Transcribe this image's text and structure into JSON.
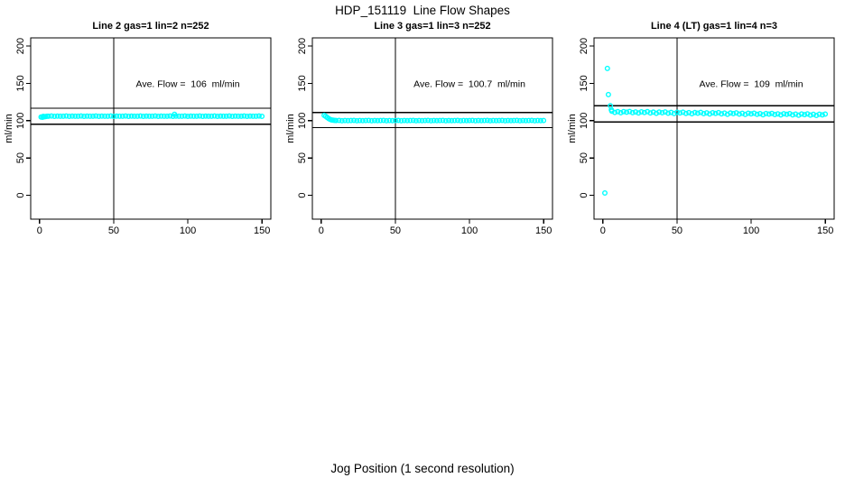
{
  "title": "HDP_151119  Line Flow Shapes",
  "xlabel": "Jog Position (1 second resolution)",
  "colors": {
    "point": "#00FFFF",
    "axis": "#000000",
    "background": "#FFFFFF"
  },
  "chart_data": [
    {
      "type": "scatter",
      "title": "Line 2 gas=1 lin=2 n=252",
      "ylabel": "ml/min",
      "annotation": "Ave. Flow =  106  ml/min",
      "ave_flow": 106,
      "n": 252,
      "marker": "open-circle",
      "xlim": [
        -6,
        156
      ],
      "ylim": [
        -32,
        211
      ],
      "x_ticks": [
        0,
        50,
        100,
        150
      ],
      "y_ticks": [
        0,
        50,
        100,
        150,
        200
      ],
      "ref_lines_y": [
        116.6,
        95.4
      ],
      "ref_lines_x": [
        50
      ],
      "annotation_pos": [
        100,
        150
      ],
      "points": [
        [
          1,
          104.8
        ],
        [
          2,
          104.6
        ],
        [
          2.5,
          105.8
        ],
        [
          3,
          105.2
        ],
        [
          4,
          105.6
        ],
        [
          5,
          105.9
        ],
        [
          6,
          106
        ],
        [
          8,
          106.3
        ],
        [
          10,
          105.8
        ],
        [
          12,
          106.1
        ],
        [
          14,
          105.9
        ],
        [
          16,
          106
        ],
        [
          18,
          106.3
        ],
        [
          20,
          105.8
        ],
        [
          22,
          106.1
        ],
        [
          24,
          105.9
        ],
        [
          26,
          106
        ],
        [
          28,
          106.3
        ],
        [
          30,
          105.8
        ],
        [
          32,
          106.1
        ],
        [
          34,
          105.9
        ],
        [
          36,
          106
        ],
        [
          38,
          106.3
        ],
        [
          40,
          105.8
        ],
        [
          42,
          106.1
        ],
        [
          44,
          105.9
        ],
        [
          46,
          106
        ],
        [
          48,
          106.3
        ],
        [
          50,
          105.8
        ],
        [
          52,
          106.1
        ],
        [
          54,
          105.9
        ],
        [
          56,
          106
        ],
        [
          58,
          106.3
        ],
        [
          60,
          105.8
        ],
        [
          62,
          106.1
        ],
        [
          64,
          105.9
        ],
        [
          66,
          106
        ],
        [
          68,
          106.3
        ],
        [
          70,
          105.8
        ],
        [
          72,
          106.1
        ],
        [
          74,
          105.9
        ],
        [
          76,
          106
        ],
        [
          78,
          106.3
        ],
        [
          80,
          105.8
        ],
        [
          82,
          106.1
        ],
        [
          84,
          105.9
        ],
        [
          86,
          106
        ],
        [
          88,
          106.3
        ],
        [
          90,
          105.8
        ],
        [
          91,
          108.6
        ],
        [
          92,
          106.1
        ],
        [
          94,
          105.9
        ],
        [
          96,
          106
        ],
        [
          98,
          106.3
        ],
        [
          100,
          105.8
        ],
        [
          102,
          106.1
        ],
        [
          104,
          105.9
        ],
        [
          106,
          106
        ],
        [
          108,
          106.3
        ],
        [
          110,
          105.8
        ],
        [
          112,
          106.1
        ],
        [
          114,
          105.9
        ],
        [
          116,
          106
        ],
        [
          118,
          106.3
        ],
        [
          120,
          105.8
        ],
        [
          122,
          106.1
        ],
        [
          124,
          105.9
        ],
        [
          126,
          106
        ],
        [
          128,
          106.3
        ],
        [
          130,
          105.8
        ],
        [
          132,
          106.1
        ],
        [
          134,
          105.9
        ],
        [
          136,
          106
        ],
        [
          138,
          106.3
        ],
        [
          140,
          105.8
        ],
        [
          142,
          106.1
        ],
        [
          144,
          105.9
        ],
        [
          146,
          106
        ],
        [
          148,
          106.3
        ],
        [
          150,
          105.8
        ]
      ]
    },
    {
      "type": "scatter",
      "title": "Line 3 gas=1 lin=3 n=252",
      "ylabel": "ml/min",
      "annotation": "Ave. Flow =  100.7  ml/min",
      "ave_flow": 100.7,
      "n": 252,
      "marker": "open-circle",
      "xlim": [
        -6,
        156
      ],
      "ylim": [
        -32,
        211
      ],
      "x_ticks": [
        0,
        50,
        100,
        150
      ],
      "y_ticks": [
        0,
        50,
        100,
        150,
        200
      ],
      "ref_lines_y": [
        110.8,
        90.6
      ],
      "ref_lines_x": [
        50
      ],
      "annotation_pos": [
        100,
        150
      ],
      "points": [
        [
          2,
          107.2
        ],
        [
          3,
          105.8
        ],
        [
          4,
          104.2
        ],
        [
          5,
          102.8
        ],
        [
          6,
          101.7
        ],
        [
          7,
          101
        ],
        [
          8,
          100.6
        ],
        [
          9,
          100.4
        ],
        [
          10,
          100.2
        ],
        [
          12,
          100.4
        ],
        [
          14,
          99.9
        ],
        [
          16,
          100.3
        ],
        [
          18,
          100
        ],
        [
          20,
          100.2
        ],
        [
          22,
          100.4
        ],
        [
          24,
          99.9
        ],
        [
          26,
          100.3
        ],
        [
          28,
          100
        ],
        [
          30,
          100.2
        ],
        [
          32,
          100.4
        ],
        [
          34,
          99.9
        ],
        [
          36,
          100.3
        ],
        [
          38,
          100
        ],
        [
          40,
          100.2
        ],
        [
          42,
          100.4
        ],
        [
          44,
          99.9
        ],
        [
          46,
          100.3
        ],
        [
          48,
          100
        ],
        [
          50,
          100.2
        ],
        [
          52,
          100.4
        ],
        [
          54,
          99.9
        ],
        [
          56,
          100.3
        ],
        [
          58,
          100
        ],
        [
          60,
          100.2
        ],
        [
          62,
          100.4
        ],
        [
          64,
          99.9
        ],
        [
          66,
          100.3
        ],
        [
          68,
          100
        ],
        [
          70,
          100.2
        ],
        [
          72,
          100.4
        ],
        [
          74,
          99.9
        ],
        [
          76,
          100.3
        ],
        [
          78,
          100
        ],
        [
          80,
          100.2
        ],
        [
          82,
          100.4
        ],
        [
          84,
          99.9
        ],
        [
          86,
          100.3
        ],
        [
          88,
          100
        ],
        [
          90,
          100.2
        ],
        [
          92,
          100.4
        ],
        [
          94,
          99.9
        ],
        [
          96,
          100.3
        ],
        [
          98,
          100
        ],
        [
          100,
          100.2
        ],
        [
          102,
          100.4
        ],
        [
          104,
          99.9
        ],
        [
          106,
          100.3
        ],
        [
          108,
          100
        ],
        [
          110,
          100.2
        ],
        [
          112,
          100.4
        ],
        [
          114,
          99.9
        ],
        [
          116,
          100.3
        ],
        [
          118,
          100
        ],
        [
          120,
          100.2
        ],
        [
          122,
          100.4
        ],
        [
          124,
          99.9
        ],
        [
          126,
          100.3
        ],
        [
          128,
          100
        ],
        [
          130,
          100.2
        ],
        [
          132,
          100.4
        ],
        [
          134,
          99.9
        ],
        [
          136,
          100.3
        ],
        [
          138,
          100
        ],
        [
          140,
          100.2
        ],
        [
          142,
          100.4
        ],
        [
          144,
          99.9
        ],
        [
          146,
          100.3
        ],
        [
          148,
          100
        ],
        [
          150,
          100.2
        ]
      ]
    },
    {
      "type": "scatter",
      "title": "Line 4 (LT) gas=1 lin=4 n=3",
      "ylabel": "ml/min",
      "annotation": "Ave. Flow =  109  ml/min",
      "ave_flow": 109,
      "n": 3,
      "marker": "open-circle",
      "xlim": [
        -6,
        156
      ],
      "ylim": [
        -32,
        211
      ],
      "x_ticks": [
        0,
        50,
        100,
        150
      ],
      "y_ticks": [
        0,
        50,
        100,
        150,
        200
      ],
      "ref_lines_y": [
        119.9,
        98.1
      ],
      "ref_lines_x": [
        50
      ],
      "annotation_pos": [
        100,
        150
      ],
      "points": [
        [
          1.3,
          3
        ],
        [
          3,
          170
        ],
        [
          3.7,
          135
        ],
        [
          5,
          120
        ],
        [
          5.7,
          114.5
        ],
        [
          6,
          112.7
        ],
        [
          8,
          111.1
        ],
        [
          10,
          112.1
        ],
        [
          12,
          110.6
        ],
        [
          14,
          112.2
        ],
        [
          16,
          111.4
        ],
        [
          18,
          112.4
        ],
        [
          20,
          110.8
        ],
        [
          22,
          111.8
        ],
        [
          24,
          110.3
        ],
        [
          26,
          111.9
        ],
        [
          28,
          111
        ],
        [
          30,
          112.1
        ],
        [
          32,
          110.4
        ],
        [
          34,
          111.5
        ],
        [
          36,
          109.9
        ],
        [
          38,
          111.6
        ],
        [
          40,
          110.7
        ],
        [
          42,
          111.8
        ],
        [
          44,
          110.1
        ],
        [
          46,
          111.2
        ],
        [
          48,
          109.6
        ],
        [
          50,
          111.3
        ],
        [
          52,
          110.4
        ],
        [
          54,
          111.4
        ],
        [
          56,
          109.8
        ],
        [
          58,
          110.8
        ],
        [
          60,
          109.3
        ],
        [
          62,
          110.9
        ],
        [
          64,
          110.1
        ],
        [
          66,
          111.1
        ],
        [
          68,
          109.5
        ],
        [
          70,
          110.5
        ],
        [
          72,
          109
        ],
        [
          74,
          110.6
        ],
        [
          76,
          109.7
        ],
        [
          78,
          110.8
        ],
        [
          80,
          109.1
        ],
        [
          82,
          110.2
        ],
        [
          84,
          108.6
        ],
        [
          86,
          110.3
        ],
        [
          88,
          109.4
        ],
        [
          90,
          110.5
        ],
        [
          92,
          108.8
        ],
        [
          94,
          109.9
        ],
        [
          96,
          108.3
        ],
        [
          98,
          110
        ],
        [
          100,
          109.1
        ],
        [
          102,
          110.1
        ],
        [
          104,
          108.5
        ],
        [
          106,
          109.5
        ],
        [
          108,
          108
        ],
        [
          110,
          109.6
        ],
        [
          112,
          108.8
        ],
        [
          114,
          109.8
        ],
        [
          116,
          108.2
        ],
        [
          118,
          109.2
        ],
        [
          120,
          107.7
        ],
        [
          122,
          109.3
        ],
        [
          124,
          108.5
        ],
        [
          126,
          109.5
        ],
        [
          128,
          107.8
        ],
        [
          130,
          108.9
        ],
        [
          132,
          107.3
        ],
        [
          134,
          109
        ],
        [
          136,
          108.1
        ],
        [
          138,
          109.2
        ],
        [
          140,
          107.5
        ],
        [
          142,
          108.6
        ],
        [
          144,
          107
        ],
        [
          146,
          108.7
        ],
        [
          148,
          107.8
        ],
        [
          150,
          108.9
        ]
      ]
    }
  ]
}
